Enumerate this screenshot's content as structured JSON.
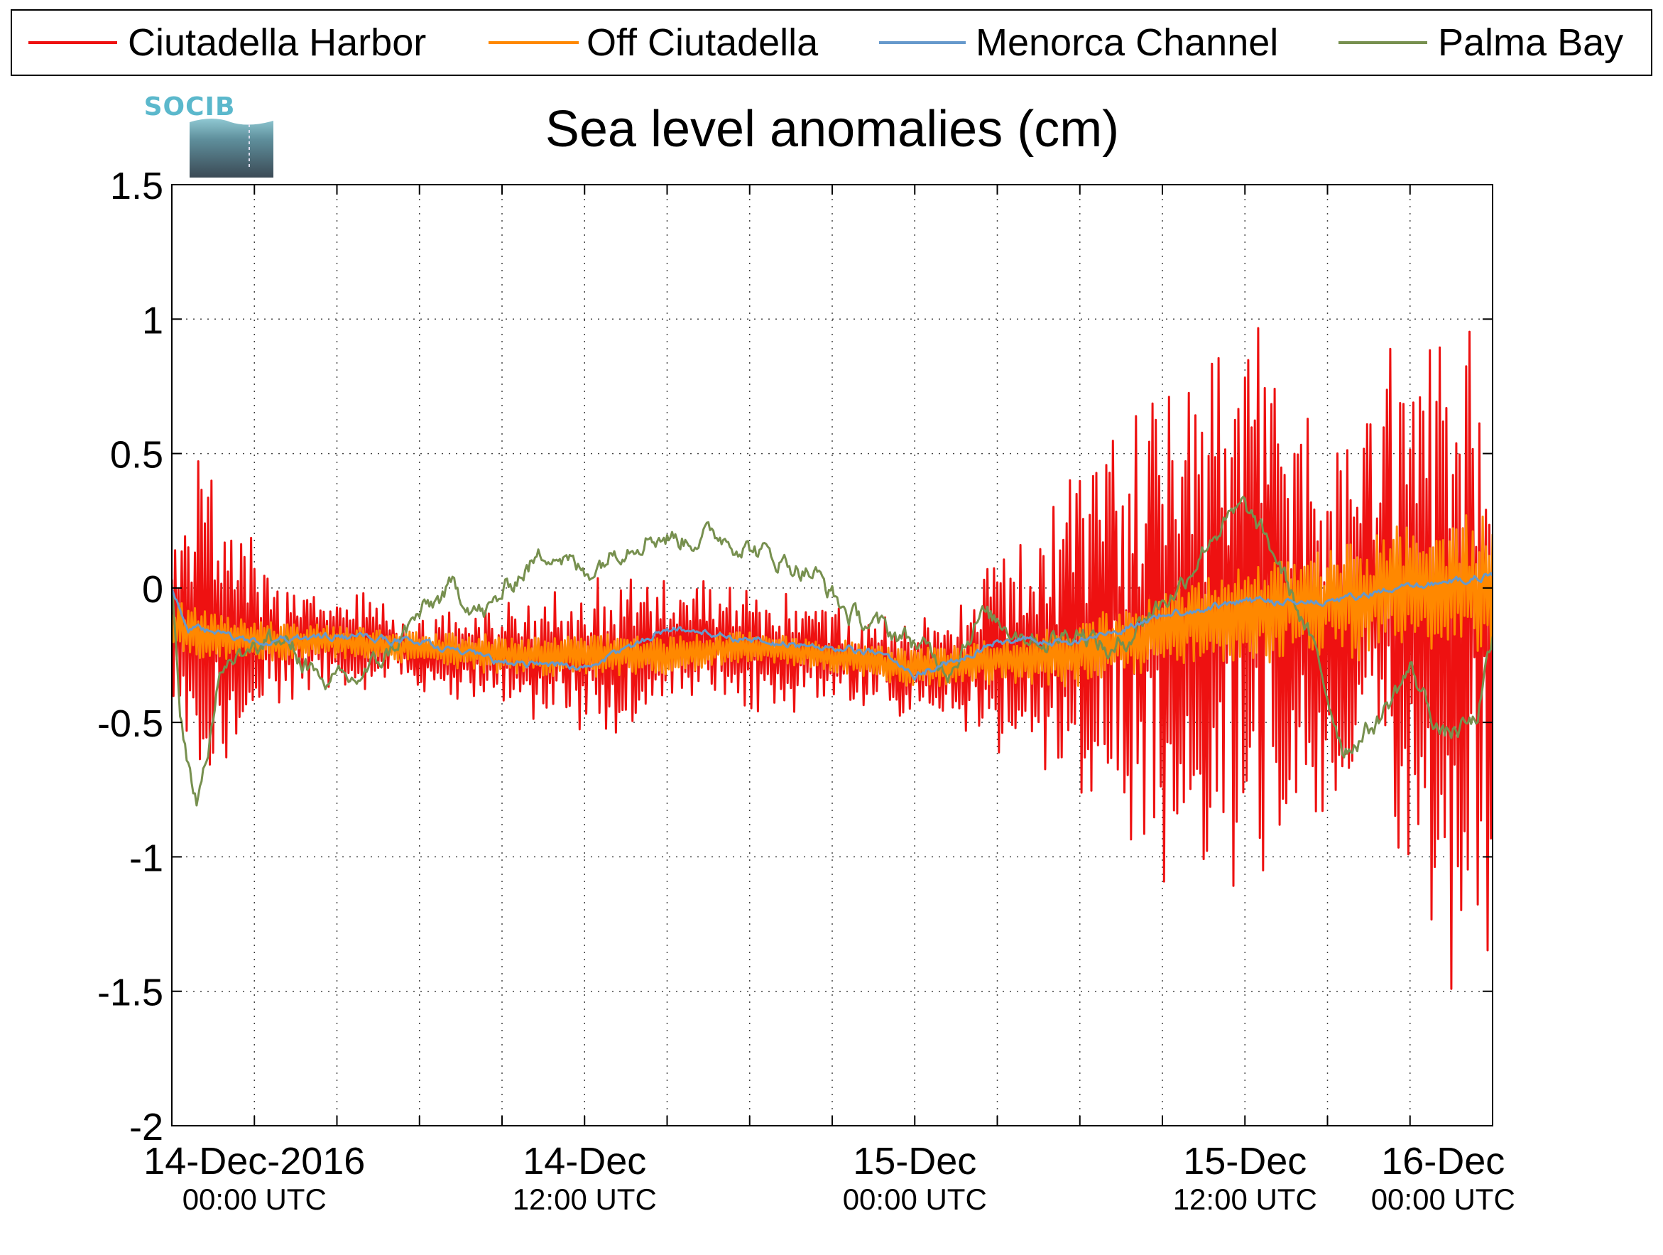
{
  "chart_data": {
    "type": "line",
    "title": "Sea level anomalies (cm)",
    "logo_text": "SOCIB",
    "ylim": [
      -2,
      1.5
    ],
    "y_ticks": [
      {
        "value": 1.5,
        "label": "1.5"
      },
      {
        "value": 1,
        "label": "1"
      },
      {
        "value": 0.5,
        "label": "0.5"
      },
      {
        "value": 0,
        "label": "0"
      },
      {
        "value": -0.5,
        "label": "-0.5"
      },
      {
        "value": -1,
        "label": "-1"
      },
      {
        "value": -1.5,
        "label": "-1.5"
      },
      {
        "value": -2,
        "label": "-2"
      }
    ],
    "xlim_hours": [
      -5,
      75
    ],
    "x_ticks_major": [
      {
        "hour": 0,
        "label1": "14-Dec-2016",
        "label2": "00:00 UTC"
      },
      {
        "hour": 20,
        "label1": "14-Dec",
        "label2": "12:00 UTC"
      },
      {
        "hour": 40,
        "label1": "15-Dec",
        "label2": "00:00 UTC"
      },
      {
        "hour": 60,
        "label1": "15-Dec",
        "label2": "12:00 UTC"
      },
      {
        "hour": 72,
        "label1": "16-Dec",
        "label2": "00:00 UTC"
      }
    ],
    "x_grid_hours": [
      0,
      5,
      10,
      15,
      20,
      25,
      30,
      35,
      40,
      45,
      50,
      55,
      60,
      65,
      70
    ],
    "grid": true,
    "legend_position": "top",
    "series": [
      {
        "name": "Ciutadella Harbor",
        "color": "#ee1111",
        "stroke_width": 3,
        "x": [
          -5,
          -3,
          -2,
          0,
          2,
          5,
          8,
          10,
          15,
          20,
          22,
          25,
          30,
          35,
          38,
          40,
          43,
          45,
          48,
          50,
          52,
          55,
          58,
          60,
          62,
          65,
          67,
          70,
          72,
          74,
          75
        ],
        "center": [
          -0.15,
          -0.15,
          -0.2,
          -0.15,
          -0.2,
          -0.2,
          -0.2,
          -0.25,
          -0.25,
          -0.25,
          -0.25,
          -0.2,
          -0.2,
          -0.25,
          -0.3,
          -0.3,
          -0.3,
          -0.25,
          -0.2,
          -0.15,
          -0.1,
          -0.1,
          -0.1,
          -0.05,
          -0.05,
          -0.1,
          0.0,
          -0.1,
          -0.1,
          -0.05,
          -0.2
        ],
        "amplitude": [
          0.25,
          0.55,
          0.45,
          0.3,
          0.18,
          0.15,
          0.12,
          0.12,
          0.15,
          0.22,
          0.25,
          0.18,
          0.2,
          0.15,
          0.15,
          0.15,
          0.2,
          0.35,
          0.45,
          0.55,
          0.6,
          0.75,
          0.9,
          0.9,
          0.8,
          0.6,
          0.45,
          0.9,
          1.1,
          1.2,
          0.8
        ],
        "noise": 0.18
      },
      {
        "name": "Off Ciutadella",
        "color": "#ff8800",
        "stroke_width": 3,
        "x": [
          -5,
          0,
          5,
          10,
          15,
          20,
          25,
          30,
          35,
          40,
          45,
          50,
          55,
          60,
          65,
          70,
          75
        ],
        "center": [
          -0.15,
          -0.2,
          -0.2,
          -0.22,
          -0.25,
          -0.25,
          -0.25,
          -0.22,
          -0.25,
          -0.3,
          -0.27,
          -0.25,
          -0.15,
          -0.1,
          -0.05,
          0.0,
          0.0
        ],
        "amplitude": [
          0.1,
          0.08,
          0.06,
          0.06,
          0.07,
          0.08,
          0.07,
          0.06,
          0.06,
          0.07,
          0.08,
          0.12,
          0.15,
          0.18,
          0.2,
          0.25,
          0.25
        ],
        "noise": 0.05
      },
      {
        "name": "Menorca Channel",
        "color": "#6699cc",
        "stroke_width": 3,
        "x": [
          -5,
          -4,
          0,
          5,
          10,
          15,
          18,
          20,
          25,
          28,
          30,
          35,
          38,
          40,
          42,
          45,
          50,
          55,
          60,
          65,
          70,
          72,
          75
        ],
        "y": [
          0.0,
          -0.15,
          -0.2,
          -0.18,
          -0.2,
          -0.28,
          -0.28,
          -0.3,
          -0.15,
          -0.17,
          -0.2,
          -0.22,
          -0.25,
          -0.32,
          -0.28,
          -0.2,
          -0.2,
          -0.1,
          -0.05,
          -0.05,
          0.0,
          0.02,
          0.05
        ],
        "noise": 0.035
      },
      {
        "name": "Palma Bay",
        "color": "#77904f",
        "stroke_width": 3,
        "x": [
          -5,
          -4.5,
          -3.5,
          -2,
          0,
          2,
          4,
          6,
          8,
          10,
          12,
          14,
          16,
          18,
          20,
          22,
          24,
          26,
          28,
          30,
          32,
          34,
          36,
          38,
          40,
          42,
          44,
          46,
          48,
          50,
          52,
          54,
          56,
          58,
          60,
          62,
          64,
          66,
          68,
          70,
          72,
          74,
          75
        ],
        "y": [
          0.0,
          -0.5,
          -0.8,
          -0.3,
          -0.2,
          -0.2,
          -0.35,
          -0.35,
          -0.25,
          -0.1,
          0.0,
          -0.1,
          0.05,
          0.15,
          0.05,
          0.15,
          0.2,
          0.18,
          0.2,
          0.15,
          0.1,
          0.05,
          -0.1,
          -0.15,
          -0.2,
          -0.3,
          -0.1,
          -0.15,
          -0.2,
          -0.15,
          -0.25,
          -0.1,
          0.0,
          0.2,
          0.3,
          0.1,
          -0.2,
          -0.6,
          -0.5,
          -0.3,
          -0.55,
          -0.5,
          -0.2
        ],
        "noise": 0.1
      }
    ]
  }
}
